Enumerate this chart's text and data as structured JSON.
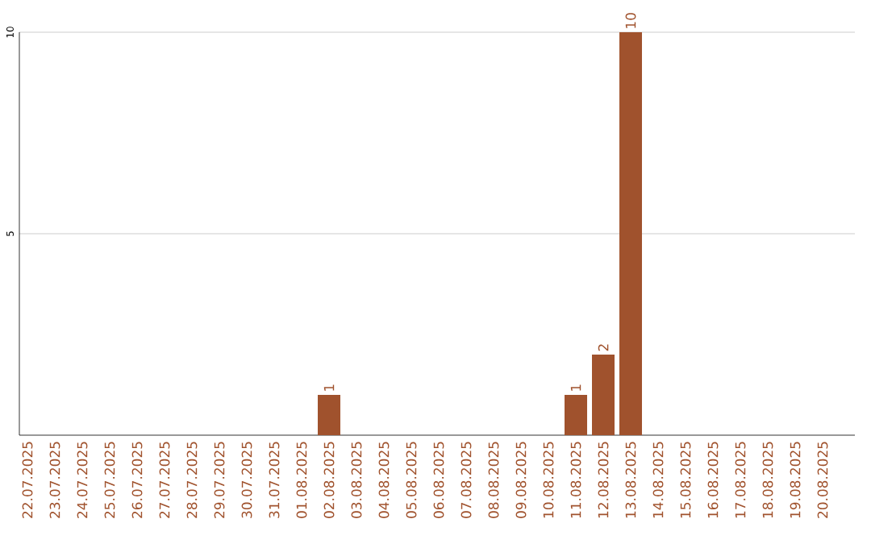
{
  "chart_data": {
    "type": "bar",
    "categories": [
      "22.07.2025",
      "23.07.2025",
      "24.07.2025",
      "25.07.2025",
      "26.07.2025",
      "27.07.2025",
      "28.07.2025",
      "29.07.2025",
      "30.07.2025",
      "31.07.2025",
      "01.08.2025",
      "02.08.2025",
      "03.08.2025",
      "04.08.2025",
      "05.08.2025",
      "06.08.2025",
      "07.08.2025",
      "08.08.2025",
      "09.08.2025",
      "10.08.2025",
      "11.08.2025",
      "12.08.2025",
      "13.08.2025",
      "14.08.2025",
      "15.08.2025",
      "16.08.2025",
      "17.08.2025",
      "18.08.2025",
      "19.08.2025",
      "20.08.2025"
    ],
    "values": [
      0,
      0,
      0,
      0,
      0,
      0,
      0,
      0,
      0,
      0,
      0,
      1,
      0,
      0,
      0,
      0,
      0,
      0,
      0,
      0,
      1,
      2,
      10,
      0,
      0,
      0,
      0,
      0,
      0,
      0
    ],
    "value_labels": [
      null,
      null,
      null,
      null,
      null,
      null,
      null,
      null,
      null,
      null,
      null,
      "1",
      null,
      null,
      null,
      null,
      null,
      null,
      null,
      null,
      "1",
      "2",
      "10",
      null,
      null,
      null,
      null,
      null,
      null,
      null
    ],
    "color": "#a0522d",
    "ylim": [
      0,
      10
    ],
    "yticks": [
      5,
      10
    ],
    "grid": "y"
  }
}
